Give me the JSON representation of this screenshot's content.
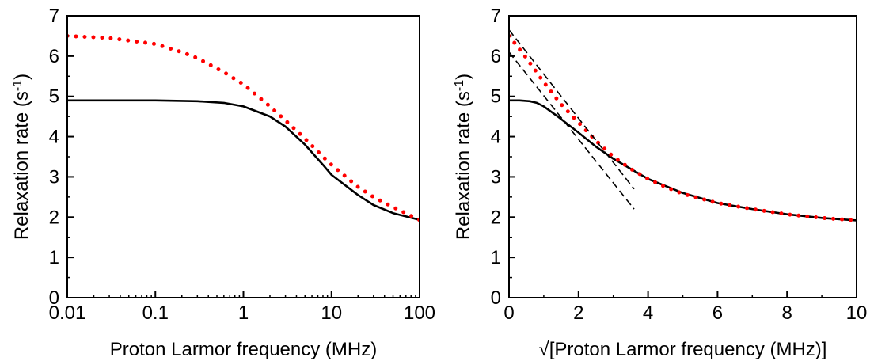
{
  "chart_data": [
    {
      "type": "line",
      "xscale": "log",
      "xlim": [
        0.01,
        100
      ],
      "ylim": [
        0,
        7
      ],
      "xticks": [
        "0.01",
        "0.1",
        "1",
        "10",
        "100"
      ],
      "yticks": [
        "0",
        "1",
        "2",
        "3",
        "4",
        "5",
        "6",
        "7"
      ],
      "xlabel": "Proton Larmor frequency (MHz)",
      "ylabel": "Relaxation rate (s",
      "ylabel_sup": "-1",
      "ylabel_close": ")",
      "series": [
        {
          "style": "solid",
          "color": "#000000",
          "x": [
            0.01,
            0.03,
            0.1,
            0.3,
            0.6,
            1,
            2,
            3,
            5,
            8,
            10,
            20,
            30,
            50,
            100
          ],
          "y": [
            4.9,
            4.9,
            4.9,
            4.88,
            4.84,
            4.75,
            4.5,
            4.25,
            3.8,
            3.3,
            3.05,
            2.55,
            2.3,
            2.1,
            1.93
          ]
        },
        {
          "style": "dotted",
          "color": "#ff0000",
          "x": [
            0.01,
            0.03,
            0.1,
            0.2,
            0.3,
            0.6,
            1,
            2,
            3,
            5,
            8,
            10,
            20,
            30,
            50,
            100
          ],
          "y": [
            6.5,
            6.45,
            6.3,
            6.1,
            5.95,
            5.6,
            5.3,
            4.75,
            4.4,
            3.95,
            3.5,
            3.3,
            2.75,
            2.5,
            2.25,
            1.93
          ]
        }
      ]
    },
    {
      "type": "line",
      "xlim": [
        0,
        10
      ],
      "ylim": [
        0,
        7
      ],
      "xticks": [
        "0",
        "2",
        "4",
        "6",
        "8",
        "10"
      ],
      "yticks": [
        "0",
        "1",
        "2",
        "3",
        "4",
        "5",
        "6",
        "7"
      ],
      "xlabel": "√[Proton Larmor frequency (MHz)]",
      "ylabel": "Relaxation rate (s",
      "ylabel_sup": "-1",
      "ylabel_close": ")",
      "series": [
        {
          "style": "solid",
          "color": "#000000",
          "x": [
            0,
            0.3,
            0.6,
            0.8,
            1.0,
            1.4,
            2.0,
            2.5,
            3.0,
            3.5,
            4.0,
            5.0,
            6.0,
            7.0,
            8.0,
            9.0,
            10.0
          ],
          "y": [
            4.9,
            4.9,
            4.88,
            4.84,
            4.75,
            4.5,
            4.1,
            3.75,
            3.45,
            3.2,
            2.95,
            2.6,
            2.35,
            2.2,
            2.07,
            1.98,
            1.92
          ]
        },
        {
          "style": "dotted",
          "color": "#ff0000",
          "x": [
            0,
            0.5,
            1.0,
            1.5,
            2.0,
            2.5,
            3.0,
            3.5,
            4.0,
            4.5,
            5.0,
            6.0,
            7.0,
            8.0,
            9.0,
            10.0
          ],
          "y": [
            6.5,
            5.95,
            5.35,
            4.8,
            4.35,
            3.9,
            3.5,
            3.2,
            2.95,
            2.75,
            2.58,
            2.35,
            2.2,
            2.07,
            1.98,
            1.92
          ]
        },
        {
          "style": "dashed",
          "color": "#000000",
          "x": [
            0,
            3.6
          ],
          "y": [
            6.65,
            2.7
          ]
        },
        {
          "style": "dashed",
          "color": "#000000",
          "x": [
            0,
            3.6
          ],
          "y": [
            6.1,
            2.2
          ]
        }
      ]
    }
  ]
}
